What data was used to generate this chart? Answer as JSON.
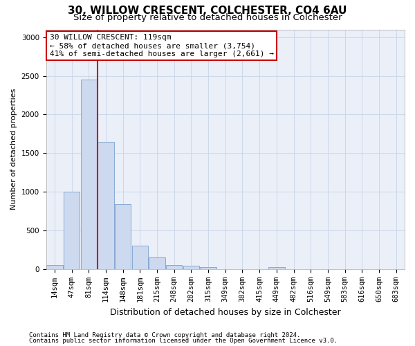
{
  "title1": "30, WILLOW CRESCENT, COLCHESTER, CO4 6AU",
  "title2": "Size of property relative to detached houses in Colchester",
  "xlabel": "Distribution of detached houses by size in Colchester",
  "ylabel": "Number of detached properties",
  "categories": [
    "14sqm",
    "47sqm",
    "81sqm",
    "114sqm",
    "148sqm",
    "181sqm",
    "215sqm",
    "248sqm",
    "282sqm",
    "315sqm",
    "349sqm",
    "382sqm",
    "415sqm",
    "449sqm",
    "482sqm",
    "516sqm",
    "549sqm",
    "583sqm",
    "616sqm",
    "650sqm",
    "683sqm"
  ],
  "values": [
    55,
    1000,
    2450,
    1650,
    840,
    300,
    150,
    50,
    40,
    25,
    0,
    0,
    0,
    25,
    0,
    0,
    0,
    0,
    0,
    0,
    0
  ],
  "bar_color": "#ccd9ee",
  "bar_edge_color": "#7a9fcf",
  "vline_color": "#cc0000",
  "vline_x_index": 3,
  "annotation_text": "30 WILLOW CRESCENT: 119sqm\n← 58% of detached houses are smaller (3,754)\n41% of semi-detached houses are larger (2,661) →",
  "annotation_box_color": "#ffffff",
  "annotation_box_edge": "#cc0000",
  "ylim": [
    0,
    3100
  ],
  "yticks": [
    0,
    500,
    1000,
    1500,
    2000,
    2500,
    3000
  ],
  "footnote1": "Contains HM Land Registry data © Crown copyright and database right 2024.",
  "footnote2": "Contains public sector information licensed under the Open Government Licence v3.0.",
  "background_color": "#ffffff",
  "plot_bg_color": "#eaeff8",
  "grid_color": "#c8d4e8",
  "title1_fontsize": 11,
  "title2_fontsize": 9.5,
  "xlabel_fontsize": 9,
  "ylabel_fontsize": 8,
  "tick_fontsize": 7.5,
  "annotation_fontsize": 8,
  "footnote_fontsize": 6.5
}
